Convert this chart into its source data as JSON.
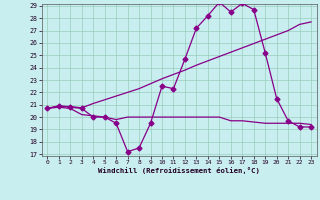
{
  "x": [
    0,
    1,
    2,
    3,
    4,
    5,
    6,
    7,
    8,
    9,
    10,
    11,
    12,
    13,
    14,
    15,
    16,
    17,
    18,
    19,
    20,
    21,
    22,
    23
  ],
  "line1_y": [
    20.7,
    20.9,
    20.8,
    20.7,
    20.0,
    20.0,
    19.5,
    17.2,
    17.5,
    19.5,
    22.5,
    22.3,
    24.7,
    27.2,
    28.2,
    29.3,
    28.5,
    29.2,
    28.7,
    25.2,
    21.5,
    19.7,
    19.2,
    19.2
  ],
  "line2_y": [
    20.7,
    20.9,
    20.85,
    20.75,
    21.1,
    21.4,
    21.7,
    22.0,
    22.3,
    22.7,
    23.1,
    23.45,
    23.8,
    24.2,
    24.55,
    24.9,
    25.25,
    25.6,
    25.95,
    26.3,
    26.65,
    27.0,
    27.5,
    27.7
  ],
  "line3_y": [
    20.7,
    20.8,
    20.7,
    20.2,
    20.1,
    20.0,
    19.8,
    20.0,
    20.0,
    20.0,
    20.0,
    20.0,
    20.0,
    20.0,
    20.0,
    20.0,
    19.7,
    19.7,
    19.6,
    19.5,
    19.5,
    19.5,
    19.5,
    19.4
  ],
  "line_color": "#880088",
  "bg_color": "#c8eef0",
  "grid_color": "#99ccbb",
  "xlabel": "Windchill (Refroidissement éolien,°C)",
  "xlim_min": -0.5,
  "xlim_max": 23.5,
  "ylim_min": 17,
  "ylim_max": 29,
  "yticks": [
    17,
    18,
    19,
    20,
    21,
    22,
    23,
    24,
    25,
    26,
    27,
    28,
    29
  ],
  "xticks": [
    0,
    1,
    2,
    3,
    4,
    5,
    6,
    7,
    8,
    9,
    10,
    11,
    12,
    13,
    14,
    15,
    16,
    17,
    18,
    19,
    20,
    21,
    22,
    23
  ],
  "marker": "D",
  "markersize": 2.5
}
